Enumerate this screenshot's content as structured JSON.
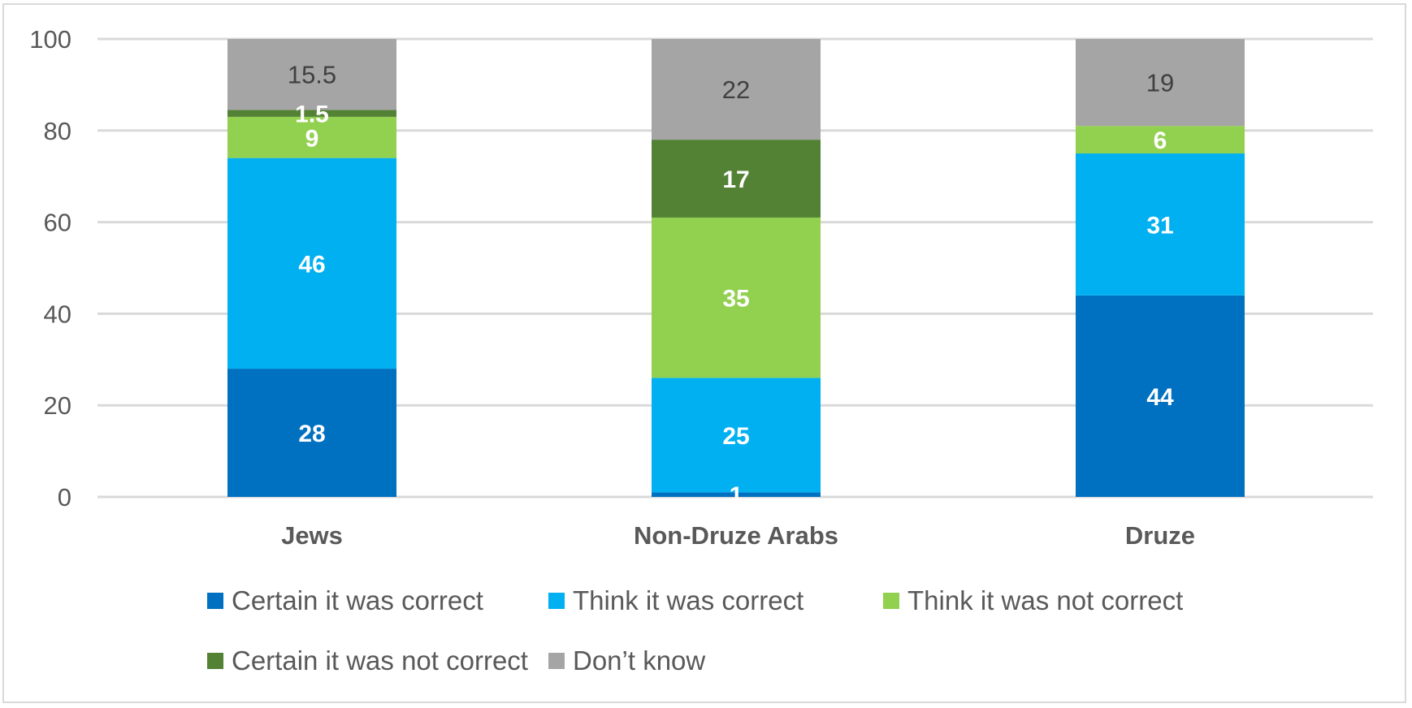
{
  "chart_data": {
    "type": "bar",
    "stacked": true,
    "categories": [
      "Jews",
      "Non-Druze Arabs",
      "Druze"
    ],
    "ylim": [
      0,
      100
    ],
    "yticks": [
      "0",
      "20",
      "40",
      "60",
      "80",
      "100"
    ],
    "grid": true,
    "legend_position": "bottom",
    "series": [
      {
        "name": "Certain it was correct",
        "color": "#0070c0",
        "values": [
          28,
          1,
          44
        ],
        "labels": [
          "28",
          "1",
          "44"
        ],
        "label_color": "#ffffff"
      },
      {
        "name": "Think it was correct",
        "color": "#00b0f0",
        "values": [
          46,
          25,
          31
        ],
        "labels": [
          "46",
          "25",
          "31"
        ],
        "label_color": "#ffffff"
      },
      {
        "name": "Think it was not correct",
        "color": "#92d050",
        "values": [
          9,
          35,
          6
        ],
        "labels": [
          "9",
          "35",
          "6"
        ],
        "label_color": "#ffffff"
      },
      {
        "name": "Certain it was not correct",
        "color": "#548235",
        "values": [
          1.5,
          17,
          0
        ],
        "labels": [
          "1.5",
          "17",
          ""
        ],
        "label_color": "#ffffff"
      },
      {
        "name": "Don’t know",
        "color": "#a5a5a5",
        "values": [
          15.5,
          22,
          19
        ],
        "labels": [
          "15.5",
          "22",
          "19"
        ],
        "label_color": "#404040"
      }
    ]
  }
}
